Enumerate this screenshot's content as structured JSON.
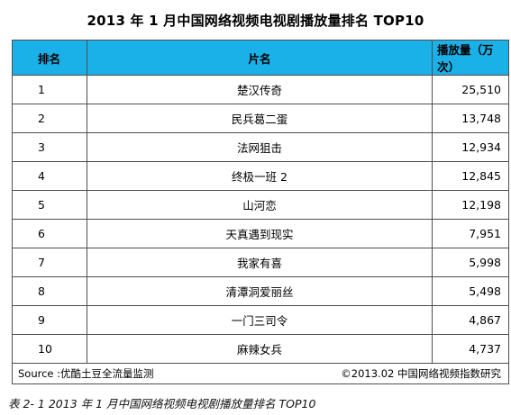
{
  "title": "2013 年 1 月中国网络视频电视剧播放量排名 TOP10",
  "table": {
    "headers": {
      "rank": "排名",
      "title": "片名",
      "views": "播放量（万次）"
    },
    "rows": [
      {
        "rank": "1",
        "title": "楚汉传奇",
        "views": "25,510"
      },
      {
        "rank": "2",
        "title": "民兵葛二蛋",
        "views": "13,748"
      },
      {
        "rank": "3",
        "title": "法网狙击",
        "views": "12,934"
      },
      {
        "rank": "4",
        "title": "终极一班 2",
        "views": "12,845"
      },
      {
        "rank": "5",
        "title": "山河恋",
        "views": "12,198"
      },
      {
        "rank": "6",
        "title": "天真遇到现实",
        "views": "7,951"
      },
      {
        "rank": "7",
        "title": "我家有喜",
        "views": "5,998"
      },
      {
        "rank": "8",
        "title": "清潭洞爱丽丝",
        "views": "5,498"
      },
      {
        "rank": "9",
        "title": "一门三司令",
        "views": "4,867"
      },
      {
        "rank": "10",
        "title": "麻辣女兵",
        "views": "4,737"
      }
    ],
    "source_left": "Source :优酷土豆全流量监测",
    "source_right": "©2013.02 中国网络视频指数研究"
  },
  "caption": "表 2- 1 2013 年 1 月中国网络视频电视剧播放量排名 TOP10",
  "colors": {
    "header_bg": "#1ab0e8",
    "border": "#4d4d4d"
  }
}
